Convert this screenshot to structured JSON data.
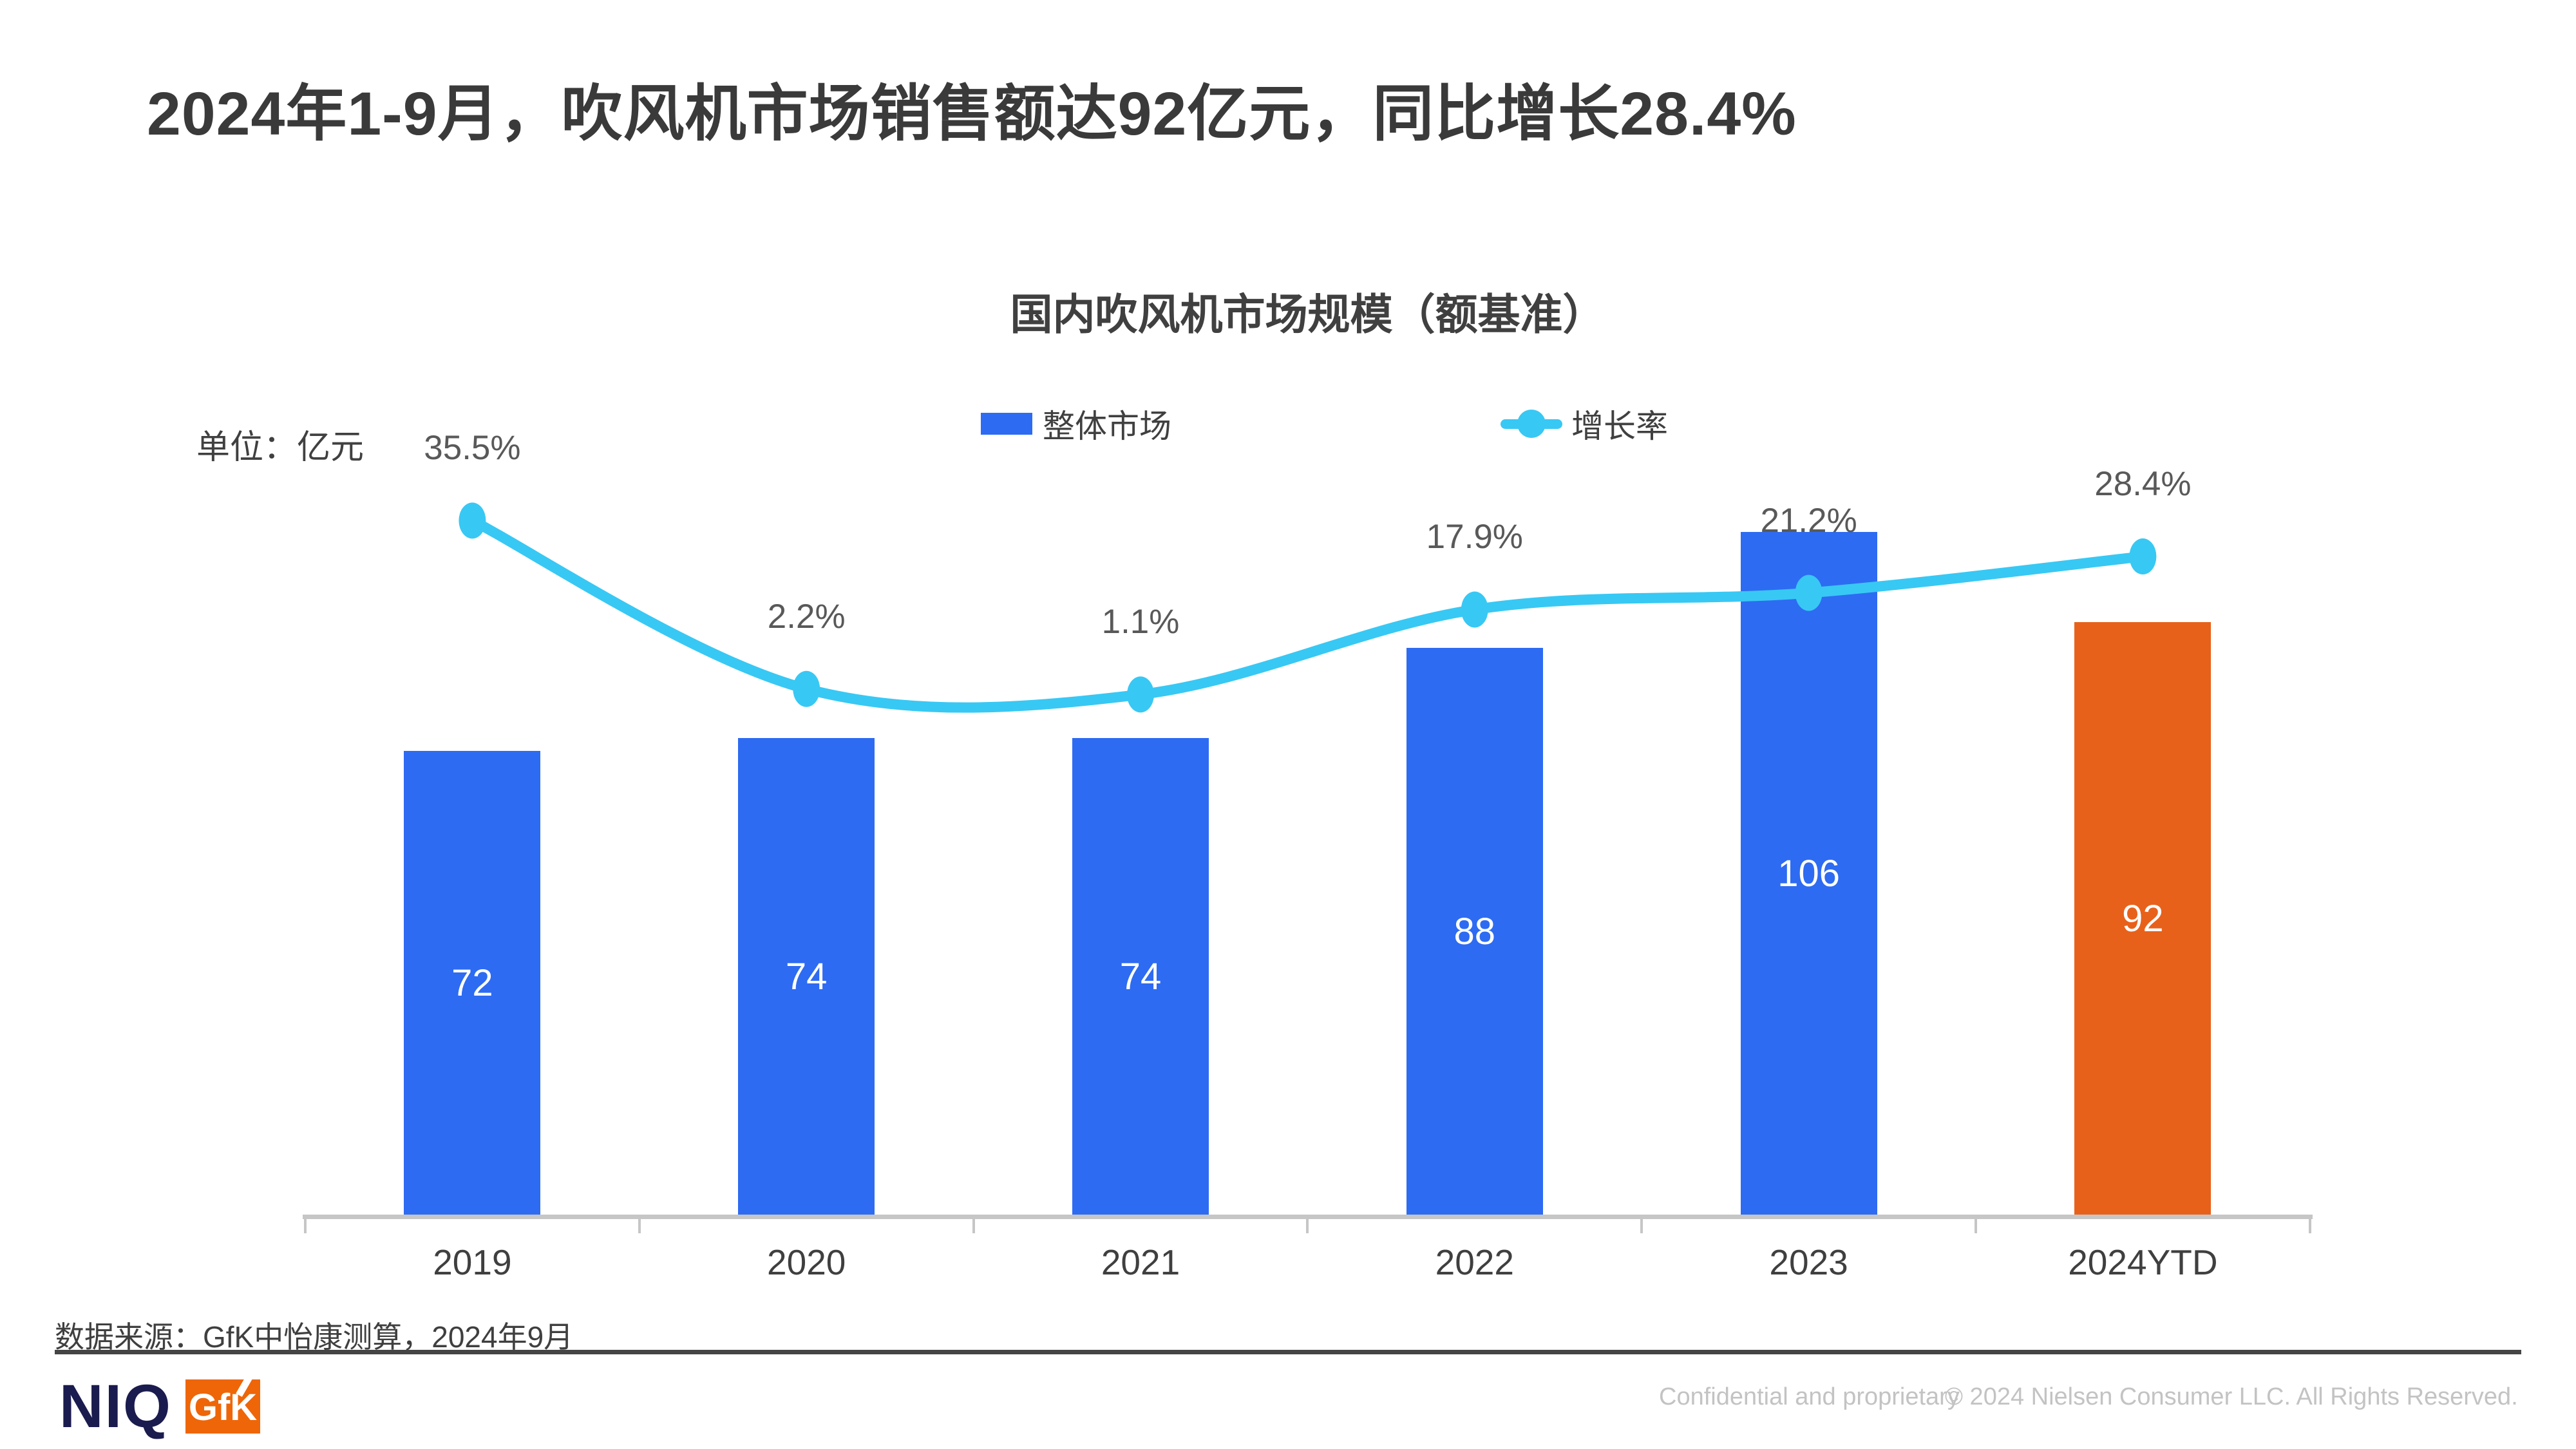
{
  "page": {
    "title": "2024年1-9月，吹风机市场销售额达92亿元，同比增长28.4%",
    "source_note": "数据来源：GfK中怡康测算，2024年9月",
    "footer": {
      "confidential": "Confidential and proprietary",
      "copyright": "© 2024 Nielsen Consumer LLC. All Rights Reserved."
    },
    "logos": {
      "niq": "NIQ",
      "gfk": "GfK"
    }
  },
  "chart_data": {
    "type": "combo-bar-line",
    "title": "国内吹风机市场规模（额基准）",
    "unit_label": "单位：亿元",
    "categories": [
      "2019",
      "2020",
      "2021",
      "2022",
      "2023",
      "2024YTD"
    ],
    "series": [
      {
        "name": "整体市场",
        "type": "bar",
        "values": [
          72,
          74,
          74,
          88,
          106,
          92
        ],
        "unit": "亿元",
        "bar_colors": [
          "#2D6BF2",
          "#2D6BF2",
          "#2D6BF2",
          "#2D6BF2",
          "#2D6BF2",
          "#E8611B"
        ]
      },
      {
        "name": "增长率",
        "type": "line",
        "values_percent": [
          35.5,
          2.2,
          1.1,
          17.9,
          21.2,
          28.4
        ],
        "labels": [
          "35.5%",
          "2.2%",
          "1.1%",
          "17.9%",
          "21.2%",
          "28.4%"
        ],
        "color": "#38C8F4"
      }
    ],
    "legend": [
      {
        "label": "整体市场",
        "color": "#2D6BF2"
      },
      {
        "label": "增长率",
        "color": "#38C8F4"
      }
    ],
    "legend_position": "top",
    "axis": {
      "baseline_color": "#c6c6c6",
      "value_axis_visible": false,
      "grid": false
    }
  }
}
